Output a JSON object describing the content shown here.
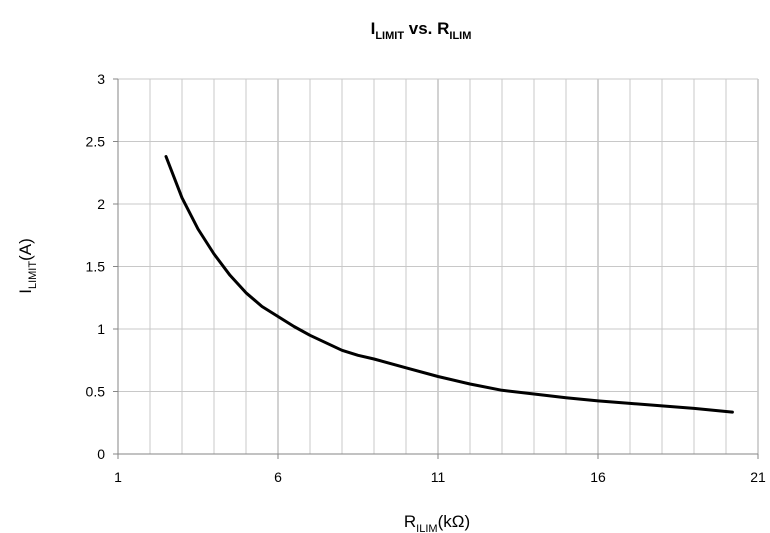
{
  "chart_data": {
    "type": "line",
    "title": {
      "main": "I",
      "sub": "LIMIT",
      "mid": " vs. R",
      "sub2": "ILIM"
    },
    "xlabel": {
      "main": "R",
      "sub": "ILIM",
      "tail": "(kΩ)"
    },
    "ylabel": {
      "main": "I",
      "sub": "LIMIT",
      "tail": "(A)"
    },
    "xlim": [
      1,
      21
    ],
    "ylim": [
      0,
      3
    ],
    "x_ticks": [
      1,
      6,
      11,
      16,
      21
    ],
    "y_ticks": [
      0,
      0.5,
      1,
      1.5,
      2,
      2.5,
      3
    ],
    "x_tick_labels": [
      "1",
      "6",
      "11",
      "16",
      "21"
    ],
    "y_tick_labels": [
      "0",
      "0.5",
      "1",
      "1.5",
      "2",
      "2.5",
      "3"
    ],
    "x_minor_step": 1,
    "grid": true,
    "line_color": "#000000",
    "grid_color": "#c8c8c8",
    "series": [
      {
        "x": [
          2.5,
          3,
          3.5,
          4,
          4.5,
          5,
          5.5,
          6,
          6.5,
          7,
          7.5,
          8,
          8.5,
          9,
          10,
          11,
          12,
          13,
          14,
          15,
          16,
          17,
          18,
          19,
          20.2
        ],
        "values": [
          2.38,
          2.05,
          1.8,
          1.6,
          1.43,
          1.29,
          1.18,
          1.1,
          1.02,
          0.95,
          0.89,
          0.83,
          0.79,
          0.76,
          0.69,
          0.62,
          0.56,
          0.51,
          0.48,
          0.45,
          0.425,
          0.405,
          0.385,
          0.365,
          0.335
        ]
      }
    ]
  }
}
